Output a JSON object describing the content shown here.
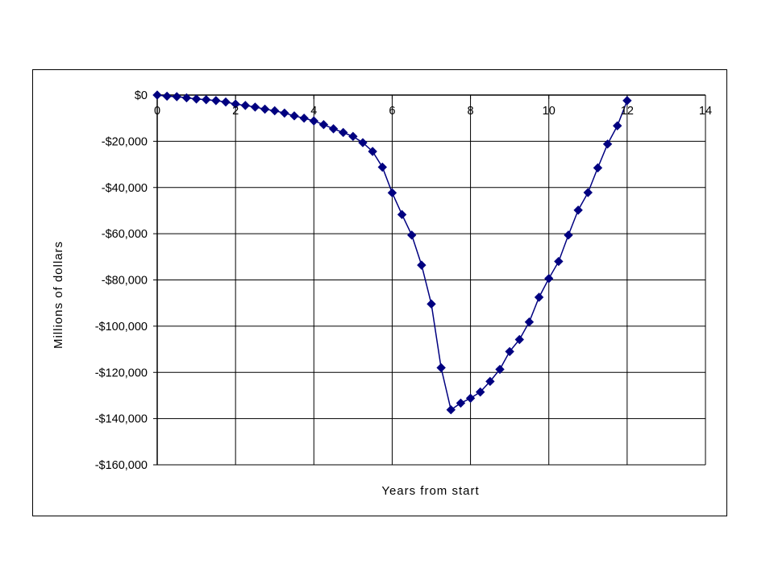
{
  "chart_data": {
    "type": "line",
    "title": "",
    "xlabel": "Years from start",
    "ylabel": "Millions of dollars",
    "xlim": [
      0,
      14
    ],
    "ylim": [
      -160000,
      0
    ],
    "x_ticks": [
      0,
      2,
      4,
      6,
      8,
      10,
      12,
      14
    ],
    "x_tick_labels": [
      "0",
      "2",
      "4",
      "6",
      "8",
      "10",
      "12",
      "14"
    ],
    "y_ticks": [
      0,
      -20000,
      -40000,
      -60000,
      -80000,
      -100000,
      -120000,
      -140000,
      -160000
    ],
    "y_tick_labels": [
      "$0",
      "-$20,000",
      "-$40,000",
      "-$60,000",
      "-$80,000",
      "-$100,000",
      "-$120,000",
      "-$140,000",
      "-$160,000"
    ],
    "grid": true,
    "legend": "none",
    "colors": {
      "series": "#000080",
      "grid": "#000000",
      "plot_background": "#ffffff"
    },
    "marker": "diamond",
    "series": [
      {
        "x": [
          0,
          0.25,
          0.5,
          0.75,
          1.0,
          1.25,
          1.5,
          1.75,
          2.0,
          2.25,
          2.5,
          2.75,
          3.0,
          3.25,
          3.5,
          3.75,
          4.0,
          4.25,
          4.5,
          4.75,
          5.0,
          5.25,
          5.5,
          5.75,
          6.0,
          6.25,
          6.5,
          6.75,
          7.0,
          7.25,
          7.5,
          7.75,
          8.0,
          8.25,
          8.5,
          8.75,
          9.0,
          9.25,
          9.5,
          9.75,
          10.0,
          10.25,
          10.5,
          10.75,
          11.0,
          11.25,
          11.5,
          11.75,
          12.0
        ],
        "values": [
          0,
          -500,
          -700,
          -1200,
          -1700,
          -2000,
          -2400,
          -3000,
          -3900,
          -4500,
          -5200,
          -6100,
          -6800,
          -7800,
          -9000,
          -10000,
          -11200,
          -12800,
          -14600,
          -16200,
          -17900,
          -20600,
          -24400,
          -31200,
          -42300,
          -51700,
          -60600,
          -73600,
          -90400,
          -118000,
          -136200,
          -133300,
          -131200,
          -128500,
          -123900,
          -118700,
          -111000,
          -105800,
          -98200,
          -87500,
          -79400,
          -72000,
          -60600,
          -49800,
          -42200,
          -31500,
          -21200,
          -13300,
          -2400
        ]
      }
    ]
  }
}
